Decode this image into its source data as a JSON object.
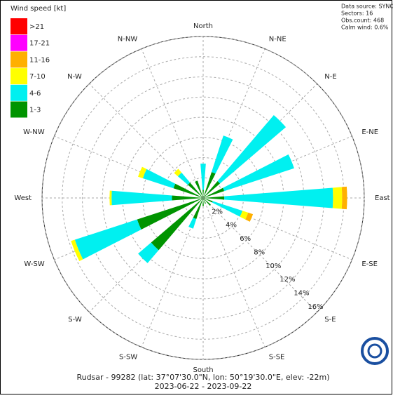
{
  "chart_data": {
    "type": "windrose",
    "legend_title": "Wind speed [kt]",
    "info": [
      "Data source: SYNOP",
      "Sectors: 16",
      "Obs.count: 468",
      "Calm wind: 0.6%"
    ],
    "footer": [
      "Rudsar - 99282 (lat: 37°07'30.0\"N, lon: 50°19'30.0\"E, elev: -22m)",
      "2023-06-22 - 2023-09-22"
    ],
    "categories": [
      "North",
      "N-NE",
      "N-E",
      "E-NE",
      "East",
      "E-SE",
      "S-E",
      "S-SE",
      "South",
      "S-SW",
      "S-W",
      "W-SW",
      "West",
      "W-NW",
      "N-W",
      "N-NW"
    ],
    "series": [
      {
        "name": "1-3",
        "color": "#009400",
        "values": [
          0.8,
          2.7,
          2.2,
          2.2,
          2.1,
          1.0,
          1.0,
          0.6,
          0.8,
          2.2,
          6.8,
          6.9,
          3.1,
          3.1,
          2.0,
          1.8
        ]
      },
      {
        "name": "4-6",
        "color": "#00f0f0",
        "values": [
          2.6,
          3.8,
          8.6,
          7.3,
          10.8,
          3.1,
          0,
          0,
          0,
          1.0,
          1.7,
          6.5,
          6.0,
          3.2,
          1.3,
          0
        ]
      },
      {
        "name": "7-10",
        "color": "#ffff00",
        "values": [
          0,
          0,
          0,
          0,
          0.9,
          0.6,
          0,
          0,
          0,
          0,
          0,
          0.4,
          0.2,
          0.5,
          0.5,
          0
        ]
      },
      {
        "name": "11-16",
        "color": "#ffb000",
        "values": [
          0,
          0,
          0,
          0,
          0.5,
          0.5,
          0,
          0,
          0,
          0,
          0,
          0,
          0,
          0,
          0,
          0
        ]
      },
      {
        "name": "17-21",
        "color": "#ff00ff",
        "values": [
          0,
          0,
          0,
          0,
          0,
          0,
          0,
          0,
          0,
          0,
          0,
          0,
          0,
          0,
          0,
          0
        ]
      },
      {
        "name": ">21",
        "color": "#ff0000",
        "values": [
          0,
          0,
          0,
          0,
          0,
          0,
          0,
          0,
          0,
          0,
          0,
          0,
          0,
          0,
          0,
          0
        ]
      }
    ],
    "rlim": [
      0,
      16
    ],
    "rticks": [
      {
        "value": 2,
        "label": "2%"
      },
      {
        "value": 4,
        "label": "4%"
      },
      {
        "value": 6,
        "label": "6%"
      },
      {
        "value": 8,
        "label": "8%"
      },
      {
        "value": 10,
        "label": "10%"
      },
      {
        "value": 12,
        "label": "12%"
      },
      {
        "value": 14,
        "label": "14%"
      },
      {
        "value": 16,
        "label": "16%"
      }
    ]
  }
}
